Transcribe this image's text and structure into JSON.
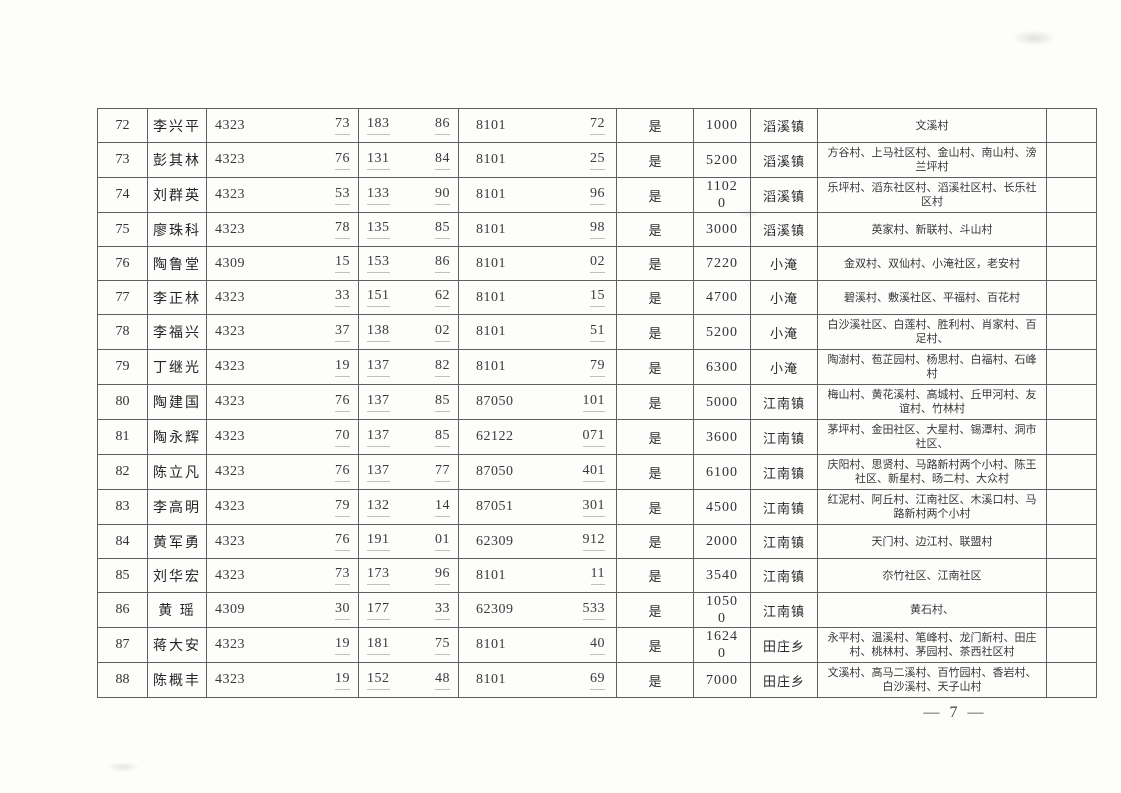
{
  "page": {
    "page_number": "— 7 —"
  },
  "table": {
    "rows": [
      {
        "seq": "72",
        "name": "李兴平",
        "id_head": "4323",
        "id_tail": "73",
        "phone_head": "183",
        "phone_tail": "86",
        "acct_head": "8101",
        "acct_tail": "72",
        "flag": "是",
        "amount": "1000",
        "town": "滔溪镇",
        "villages": "文溪村"
      },
      {
        "seq": "73",
        "name": "彭其林",
        "id_head": "4323",
        "id_tail": "76",
        "phone_head": "131",
        "phone_tail": "84",
        "acct_head": "8101",
        "acct_tail": "25",
        "flag": "是",
        "amount": "5200",
        "town": "滔溪镇",
        "villages": "方谷村、上马社区村、金山村、南山村、滂兰坪村"
      },
      {
        "seq": "74",
        "name": "刘群英",
        "id_head": "4323",
        "id_tail": "53",
        "phone_head": "133",
        "phone_tail": "90",
        "acct_head": "8101",
        "acct_tail": "96",
        "flag": "是",
        "amount": "11020",
        "town": "滔溪镇",
        "villages": "乐坪村、滔东社区村、滔溪社区村、长乐社区村"
      },
      {
        "seq": "75",
        "name": "廖珠科",
        "id_head": "4323",
        "id_tail": "78",
        "phone_head": "135",
        "phone_tail": "85",
        "acct_head": "8101",
        "acct_tail": "98",
        "flag": "是",
        "amount": "3000",
        "town": "滔溪镇",
        "villages": "英家村、新联村、斗山村"
      },
      {
        "seq": "76",
        "name": "陶鲁堂",
        "id_head": "4309",
        "id_tail": "15",
        "phone_head": "153",
        "phone_tail": "86",
        "acct_head": "8101",
        "acct_tail": "02",
        "flag": "是",
        "amount": "7220",
        "town": "小淹",
        "villages": "金双村、双仙村、小淹社区，老安村"
      },
      {
        "seq": "77",
        "name": "李正林",
        "id_head": "4323",
        "id_tail": "33",
        "phone_head": "151",
        "phone_tail": "62",
        "acct_head": "8101",
        "acct_tail": "15",
        "flag": "是",
        "amount": "4700",
        "town": "小淹",
        "villages": "碧溪村、敷溪社区、平福村、百花村"
      },
      {
        "seq": "78",
        "name": "李福兴",
        "id_head": "4323",
        "id_tail": "37",
        "phone_head": "138",
        "phone_tail": "02",
        "acct_head": "8101",
        "acct_tail": "51",
        "flag": "是",
        "amount": "5200",
        "town": "小淹",
        "villages": "白沙溪社区、白莲村、胜利村、肖家村、百足村、"
      },
      {
        "seq": "79",
        "name": "丁继光",
        "id_head": "4323",
        "id_tail": "19",
        "phone_head": "137",
        "phone_tail": "82",
        "acct_head": "8101",
        "acct_tail": "79",
        "flag": "是",
        "amount": "6300",
        "town": "小淹",
        "villages": "陶澍村、苞芷园村、杨思村、白福村、石峰村"
      },
      {
        "seq": "80",
        "name": "陶建国",
        "id_head": "4323",
        "id_tail": "76",
        "phone_head": "137",
        "phone_tail": "85",
        "acct_head": "87050",
        "acct_tail": "101",
        "flag": "是",
        "amount": "5000",
        "town": "江南镇",
        "villages": "梅山村、黄花溪村、高城村、丘甲河村、友谊村、竹林村"
      },
      {
        "seq": "81",
        "name": "陶永辉",
        "id_head": "4323",
        "id_tail": "70",
        "phone_head": "137",
        "phone_tail": "85",
        "acct_head": "62122",
        "acct_tail": "071",
        "flag": "是",
        "amount": "3600",
        "town": "江南镇",
        "villages": "茅坪村、金田社区、大星村、锡潭村、洞市社区、"
      },
      {
        "seq": "82",
        "name": "陈立凡",
        "id_head": "4323",
        "id_tail": "76",
        "phone_head": "137",
        "phone_tail": "77",
        "acct_head": "87050",
        "acct_tail": "401",
        "flag": "是",
        "amount": "6100",
        "town": "江南镇",
        "villages": "庆阳村、思贤村、马路新村两个小村、陈王社区、新星村、旸二村、大众村"
      },
      {
        "seq": "83",
        "name": "李高明",
        "id_head": "4323",
        "id_tail": "79",
        "phone_head": "132",
        "phone_tail": "14",
        "acct_head": "87051",
        "acct_tail": "301",
        "flag": "是",
        "amount": "4500",
        "town": "江南镇",
        "villages": "红泥村、阿丘村、江南社区、木溪口村、马路新村两个小村"
      },
      {
        "seq": "84",
        "name": "黄军勇",
        "id_head": "4323",
        "id_tail": "76",
        "phone_head": "191",
        "phone_tail": "01",
        "acct_head": "62309",
        "acct_tail": "912",
        "flag": "是",
        "amount": "2000",
        "town": "江南镇",
        "villages": "天门村、边江村、联盟村"
      },
      {
        "seq": "85",
        "name": "刘华宏",
        "id_head": "4323",
        "id_tail": "73",
        "phone_head": "173",
        "phone_tail": "96",
        "acct_head": "8101",
        "acct_tail": "11",
        "flag": "是",
        "amount": "3540",
        "town": "江南镇",
        "villages": "夵竹社区、江南社区"
      },
      {
        "seq": "86",
        "name": "黄 瑶",
        "id_head": "4309",
        "id_tail": "30",
        "phone_head": "177",
        "phone_tail": "33",
        "acct_head": "62309",
        "acct_tail": "533",
        "flag": "是",
        "amount": "10500",
        "town": "江南镇",
        "villages": "黄石村、"
      },
      {
        "seq": "87",
        "name": "蒋大安",
        "id_head": "4323",
        "id_tail": "19",
        "phone_head": "181",
        "phone_tail": "75",
        "acct_head": "8101",
        "acct_tail": "40",
        "flag": "是",
        "amount": "16240",
        "town": "田庄乡",
        "villages": "永平村、温溪村、笔峰村、龙门新村、田庄村、桃林村、茅园村、茶西社区村"
      },
      {
        "seq": "88",
        "name": "陈概丰",
        "id_head": "4323",
        "id_tail": "19",
        "phone_head": "152",
        "phone_tail": "48",
        "acct_head": "8101",
        "acct_tail": "69",
        "flag": "是",
        "amount": "7000",
        "town": "田庄乡",
        "villages": "文溪村、高马二溪村、百竹园村、香岩村、白沙溪村、天子山村"
      }
    ]
  }
}
